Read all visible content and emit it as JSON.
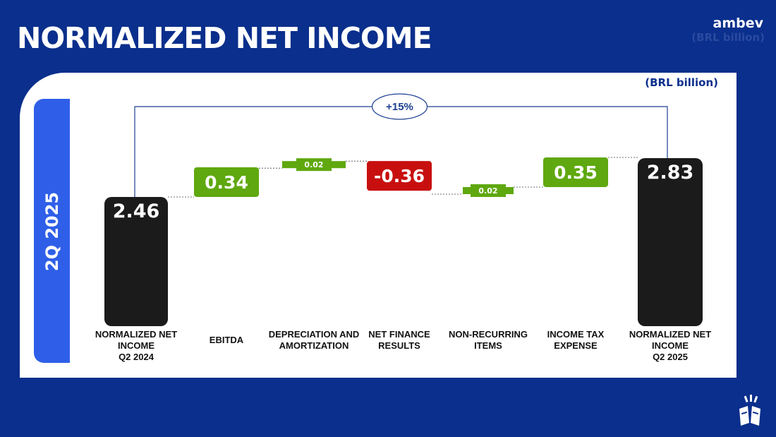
{
  "header": {
    "title": "NORMALIZED NET INCOME",
    "brand": "ambev",
    "unit_ghost": "(BRL billion)"
  },
  "period_label": "2Q 2025",
  "unit_label": "(BRL billion)",
  "colors": {
    "background": "#0a2f8c",
    "panel": "#ffffff",
    "period_bar": "#2f5fe8",
    "total": "#1b1b1b",
    "increase": "#5fa80f",
    "decrease": "#c80f0f"
  },
  "chart_data": {
    "type": "waterfall",
    "title": "NORMALIZED NET INCOME",
    "unit": "(BRL billion)",
    "categories": [
      [
        "NORMALIZED NET",
        "INCOME",
        "Q2 2024"
      ],
      [
        "EBITDA"
      ],
      [
        "DEPRECIATION AND",
        "AMORTIZATION"
      ],
      [
        "NET FINANCE",
        "RESULTS"
      ],
      [
        "NON-RECURRING",
        "ITEMS"
      ],
      [
        "INCOME TAX",
        "EXPENSE"
      ],
      [
        "NORMALIZED NET",
        "INCOME",
        "Q2 2025"
      ]
    ],
    "values": [
      2.46,
      0.34,
      0.02,
      -0.36,
      0.02,
      0.35,
      2.83
    ],
    "labels": [
      "2.46",
      "0.34",
      "0.02",
      "-0.36",
      "0.02",
      "0.35",
      "2.83"
    ],
    "kinds": [
      "total",
      "increase",
      "increase",
      "decrease",
      "increase",
      "increase",
      "total"
    ],
    "change_annotation": "+15%"
  }
}
